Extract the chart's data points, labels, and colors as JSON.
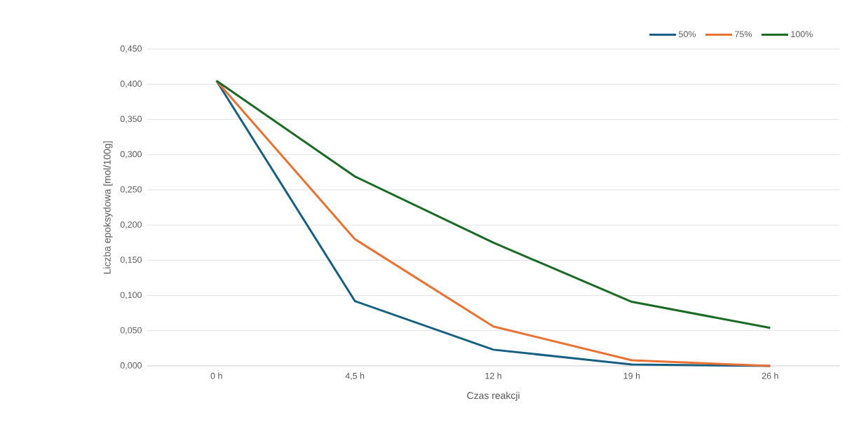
{
  "chart_data": {
    "type": "line",
    "xlabel": "Czas reakcji",
    "ylabel": "Liczba epoksydowa [mol/100g]",
    "categories": [
      "0 h",
      "4,5 h",
      "12 h",
      "19 h",
      "26 h"
    ],
    "series": [
      {
        "name": "50%",
        "color": "#156082",
        "values": [
          0.405,
          0.092,
          0.023,
          0.002,
          0.0
        ]
      },
      {
        "name": "75%",
        "color": "#e97132",
        "values": [
          0.405,
          0.18,
          0.056,
          0.008,
          0.0
        ]
      },
      {
        "name": "100%",
        "color": "#196b24",
        "values": [
          0.405,
          0.269,
          0.175,
          0.091,
          0.054
        ]
      }
    ],
    "ylim": [
      0,
      0.45
    ],
    "yticks": [
      {
        "value": 0,
        "label": "0,000"
      },
      {
        "value": 0.05,
        "label": "0,050"
      },
      {
        "value": 0.1,
        "label": "0,100"
      },
      {
        "value": 0.15,
        "label": "0,150"
      },
      {
        "value": 0.2,
        "label": "0,200"
      },
      {
        "value": 0.25,
        "label": "0,250"
      },
      {
        "value": 0.3,
        "label": "0,300"
      },
      {
        "value": 0.35,
        "label": "0,350"
      },
      {
        "value": 0.4,
        "label": "0,400"
      },
      {
        "value": 0.45,
        "label": "0,450"
      }
    ],
    "grid": "y",
    "legend": "top right",
    "marker": "none",
    "line_style": "solid"
  }
}
